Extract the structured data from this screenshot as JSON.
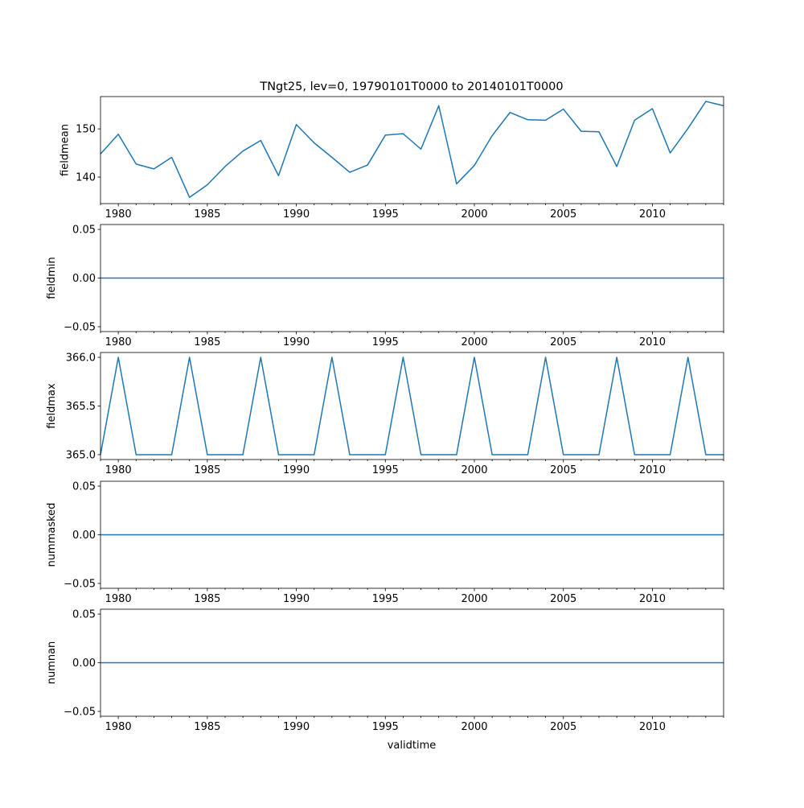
{
  "figure": {
    "title": "TNgt25, lev=0, 19790101T0000 to 20140101T0000",
    "xlabel": "validtime"
  },
  "chart_data": [
    {
      "type": "line",
      "ylabel": "fieldmean",
      "xlim": [
        1979,
        2014
      ],
      "ylim": [
        134.5,
        156.7
      ],
      "x_ticks": [
        "1980",
        "1985",
        "1990",
        "1995",
        "2000",
        "2005",
        "2010"
      ],
      "y_ticks": [
        "140",
        "150"
      ],
      "series": [
        {
          "color": "#1f77b4",
          "x": [
            1979,
            1980,
            1981,
            1982,
            1983,
            1984,
            1985,
            1986,
            1987,
            1988,
            1989,
            1990,
            1991,
            1992,
            1993,
            1994,
            1995,
            1996,
            1997,
            1998,
            1999,
            2000,
            2001,
            2002,
            2003,
            2004,
            2005,
            2006,
            2007,
            2008,
            2009,
            2010,
            2011,
            2012,
            2013,
            2014
          ],
          "values": [
            144.8,
            148.9,
            142.7,
            141.7,
            144.1,
            135.8,
            138.4,
            142.2,
            145.4,
            147.6,
            140.3,
            150.9,
            147.1,
            144.1,
            141.0,
            142.5,
            148.7,
            149.0,
            145.8,
            154.8,
            138.6,
            142.4,
            148.6,
            153.4,
            151.9,
            151.8,
            154.1,
            149.5,
            149.4,
            142.2,
            151.8,
            154.2,
            145.0,
            150.1,
            155.7,
            154.8
          ]
        }
      ]
    },
    {
      "type": "line",
      "ylabel": "fieldmin",
      "xlim": [
        1979,
        2014
      ],
      "ylim": [
        -0.055,
        0.055
      ],
      "x_ticks": [
        "1980",
        "1985",
        "1990",
        "1995",
        "2000",
        "2005",
        "2010"
      ],
      "y_ticks": [
        "−0.05",
        "0.00",
        "0.05"
      ],
      "series": [
        {
          "color": "#1f77b4",
          "x": [
            1979,
            1980,
            1981,
            1982,
            1983,
            1984,
            1985,
            1986,
            1987,
            1988,
            1989,
            1990,
            1991,
            1992,
            1993,
            1994,
            1995,
            1996,
            1997,
            1998,
            1999,
            2000,
            2001,
            2002,
            2003,
            2004,
            2005,
            2006,
            2007,
            2008,
            2009,
            2010,
            2011,
            2012,
            2013,
            2014
          ],
          "values": [
            0,
            0,
            0,
            0,
            0,
            0,
            0,
            0,
            0,
            0,
            0,
            0,
            0,
            0,
            0,
            0,
            0,
            0,
            0,
            0,
            0,
            0,
            0,
            0,
            0,
            0,
            0,
            0,
            0,
            0,
            0,
            0,
            0,
            0,
            0,
            0
          ]
        }
      ]
    },
    {
      "type": "line",
      "ylabel": "fieldmax",
      "xlim": [
        1979,
        2014
      ],
      "ylim": [
        364.95,
        366.05
      ],
      "x_ticks": [
        "1980",
        "1985",
        "1990",
        "1995",
        "2000",
        "2005",
        "2010"
      ],
      "y_ticks": [
        "365.0",
        "365.5",
        "366.0"
      ],
      "series": [
        {
          "color": "#1f77b4",
          "x": [
            1979,
            1980,
            1981,
            1982,
            1983,
            1984,
            1985,
            1986,
            1987,
            1988,
            1989,
            1990,
            1991,
            1992,
            1993,
            1994,
            1995,
            1996,
            1997,
            1998,
            1999,
            2000,
            2001,
            2002,
            2003,
            2004,
            2005,
            2006,
            2007,
            2008,
            2009,
            2010,
            2011,
            2012,
            2013,
            2014
          ],
          "values": [
            365,
            366,
            365,
            365,
            365,
            366,
            365,
            365,
            365,
            366,
            365,
            365,
            365,
            366,
            365,
            365,
            365,
            366,
            365,
            365,
            365,
            366,
            365,
            365,
            365,
            366,
            365,
            365,
            365,
            366,
            365,
            365,
            365,
            366,
            365,
            365
          ]
        }
      ]
    },
    {
      "type": "line",
      "ylabel": "nummasked",
      "xlim": [
        1979,
        2014
      ],
      "ylim": [
        -0.055,
        0.055
      ],
      "x_ticks": [
        "1980",
        "1985",
        "1990",
        "1995",
        "2000",
        "2005",
        "2010"
      ],
      "y_ticks": [
        "−0.05",
        "0.00",
        "0.05"
      ],
      "series": [
        {
          "color": "#1f77b4",
          "x": [
            1979,
            1980,
            1981,
            1982,
            1983,
            1984,
            1985,
            1986,
            1987,
            1988,
            1989,
            1990,
            1991,
            1992,
            1993,
            1994,
            1995,
            1996,
            1997,
            1998,
            1999,
            2000,
            2001,
            2002,
            2003,
            2004,
            2005,
            2006,
            2007,
            2008,
            2009,
            2010,
            2011,
            2012,
            2013,
            2014
          ],
          "values": [
            0,
            0,
            0,
            0,
            0,
            0,
            0,
            0,
            0,
            0,
            0,
            0,
            0,
            0,
            0,
            0,
            0,
            0,
            0,
            0,
            0,
            0,
            0,
            0,
            0,
            0,
            0,
            0,
            0,
            0,
            0,
            0,
            0,
            0,
            0,
            0
          ]
        }
      ]
    },
    {
      "type": "line",
      "ylabel": "numnan",
      "xlim": [
        1979,
        2014
      ],
      "ylim": [
        -0.055,
        0.055
      ],
      "x_ticks": [
        "1980",
        "1985",
        "1990",
        "1995",
        "2000",
        "2005",
        "2010"
      ],
      "y_ticks": [
        "−0.05",
        "0.00",
        "0.05"
      ],
      "series": [
        {
          "color": "#1f77b4",
          "x": [
            1979,
            1980,
            1981,
            1982,
            1983,
            1984,
            1985,
            1986,
            1987,
            1988,
            1989,
            1990,
            1991,
            1992,
            1993,
            1994,
            1995,
            1996,
            1997,
            1998,
            1999,
            2000,
            2001,
            2002,
            2003,
            2004,
            2005,
            2006,
            2007,
            2008,
            2009,
            2010,
            2011,
            2012,
            2013,
            2014
          ],
          "values": [
            0,
            0,
            0,
            0,
            0,
            0,
            0,
            0,
            0,
            0,
            0,
            0,
            0,
            0,
            0,
            0,
            0,
            0,
            0,
            0,
            0,
            0,
            0,
            0,
            0,
            0,
            0,
            0,
            0,
            0,
            0,
            0,
            0,
            0,
            0,
            0
          ]
        }
      ]
    }
  ]
}
